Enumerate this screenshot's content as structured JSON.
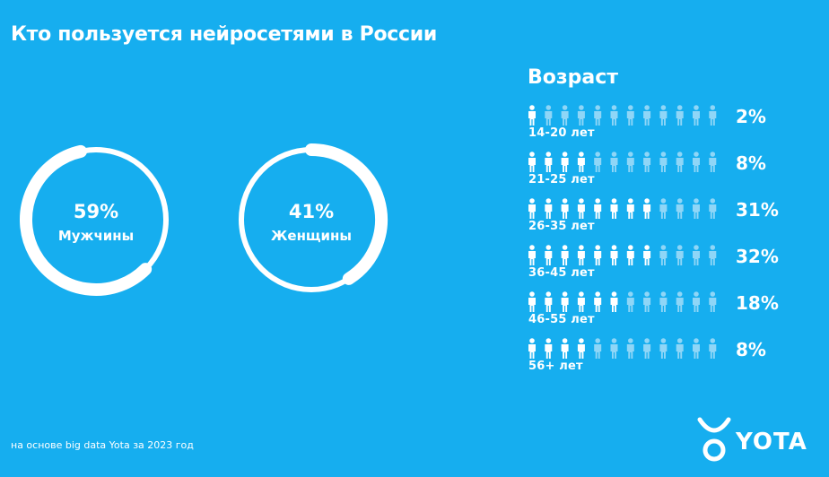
{
  "title": "Кто пользуется нейросетями в России",
  "colors": {
    "background": "#16aeef",
    "foreground": "#ffffff",
    "inactive_icon": "#8fd6f7"
  },
  "chart_data": [
    {
      "type": "pie",
      "categories": [
        "Мужчины",
        "Женщины"
      ],
      "values": [
        59,
        41
      ],
      "value_labels": [
        "59%",
        "41%"
      ]
    },
    {
      "type": "bar",
      "title": "Возраст",
      "categories": [
        "14-20 лет",
        "21-25 лет",
        "26-35 лет",
        "36-45 лет",
        "46-55 лет",
        "56+ лет"
      ],
      "values": [
        2,
        8,
        31,
        32,
        18,
        8
      ],
      "value_labels": [
        "2%",
        "8%",
        "31%",
        "32%",
        "18%",
        "8%"
      ],
      "icons_total": 12,
      "icons_filled": [
        1,
        4,
        8,
        8,
        6,
        4
      ]
    }
  ],
  "footnote": "на основе big data Yota за 2023 год",
  "brand": {
    "name": "YOTA",
    "icon": "yota-logo-icon"
  }
}
